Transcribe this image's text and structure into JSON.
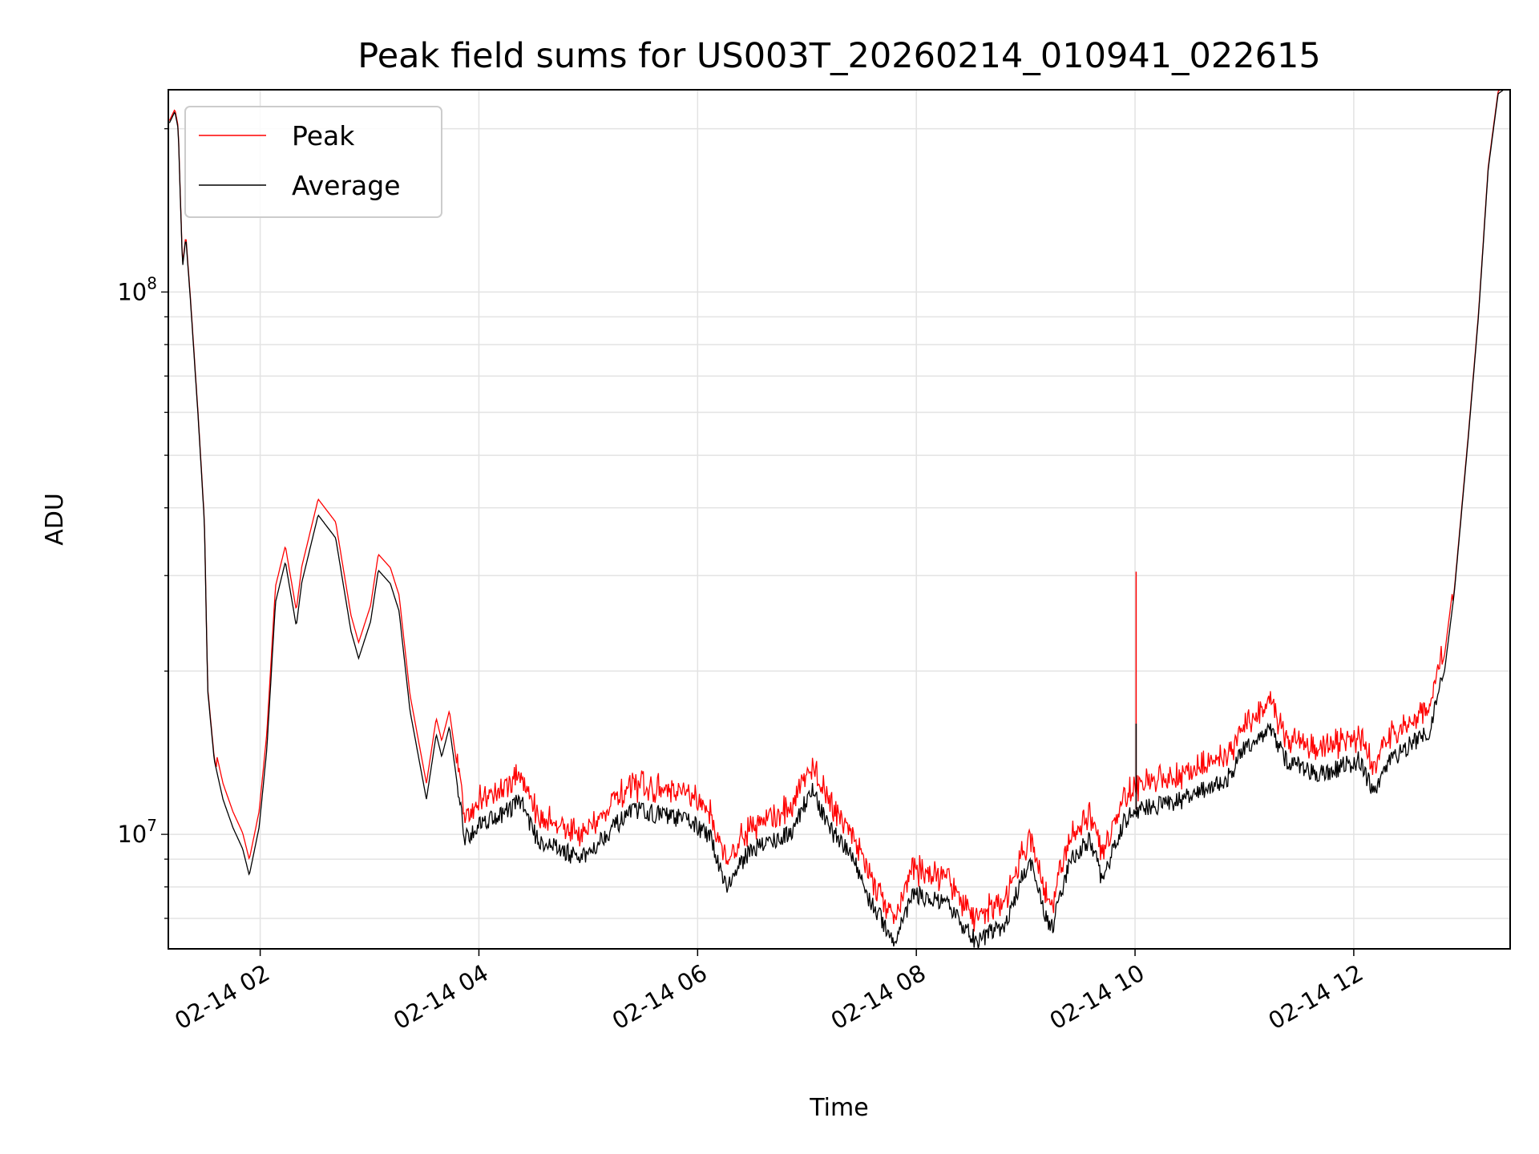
{
  "chart_data": {
    "type": "line",
    "title": "Peak field sums for US003T_20260214_010941_022615",
    "xlabel": "Time",
    "ylabel": "ADU",
    "yscale": "log",
    "ylim": [
      6150000,
      236000000
    ],
    "xlim_hours": [
      1.16,
      13.43
    ],
    "grid": true,
    "legend_placement": "top-left",
    "x_ticks": [
      {
        "hour": 2,
        "label": "02-14 02"
      },
      {
        "hour": 4,
        "label": "02-14 04"
      },
      {
        "hour": 6,
        "label": "02-14 06"
      },
      {
        "hour": 8,
        "label": "02-14 08"
      },
      {
        "hour": 10,
        "label": "02-14 10"
      },
      {
        "hour": 12,
        "label": "02-14 12"
      }
    ],
    "y_ticks": [
      {
        "value": 10000000,
        "base": "10",
        "exp": "7"
      },
      {
        "value": 100000000,
        "base": "10",
        "exp": "8"
      }
    ],
    "series": [
      {
        "name": "Peak",
        "color": "#ff0000",
        "ratio_to_average": 1.07,
        "spike": {
          "hour": 10.01,
          "value": 30500000
        }
      },
      {
        "name": "Average",
        "color": "#000000",
        "spike": {
          "hour": 10.01,
          "value": 16000000
        }
      }
    ],
    "average_keypoints_hour_millions": [
      [
        1.17,
        205
      ],
      [
        1.22,
        215
      ],
      [
        1.25,
        200
      ],
      [
        1.29,
        111
      ],
      [
        1.32,
        126
      ],
      [
        1.36,
        98
      ],
      [
        1.43,
        60
      ],
      [
        1.49,
        37.6
      ],
      [
        1.52,
        18.4
      ],
      [
        1.58,
        13.7
      ],
      [
        1.66,
        11.6
      ],
      [
        1.75,
        10.3
      ],
      [
        1.84,
        9.4
      ],
      [
        1.9,
        8.4
      ],
      [
        1.99,
        10.3
      ],
      [
        2.06,
        14.3
      ],
      [
        2.14,
        26.8
      ],
      [
        2.23,
        31.8
      ],
      [
        2.33,
        24.2
      ],
      [
        2.38,
        29.1
      ],
      [
        2.53,
        38.8
      ],
      [
        2.69,
        35.2
      ],
      [
        2.83,
        23.7
      ],
      [
        2.9,
        21.1
      ],
      [
        3.01,
        24.7
      ],
      [
        3.08,
        30.7
      ],
      [
        3.19,
        29
      ],
      [
        3.27,
        25.8
      ],
      [
        3.37,
        16.9
      ],
      [
        3.52,
        11.6
      ],
      [
        3.61,
        15.3
      ],
      [
        3.66,
        13.9
      ],
      [
        3.73,
        15.8
      ],
      [
        3.87,
        9.84
      ],
      [
        4.04,
        10.6
      ],
      [
        4.22,
        10.9
      ],
      [
        4.38,
        11.6
      ],
      [
        4.53,
        9.8
      ],
      [
        4.94,
        9.0
      ],
      [
        5.22,
        10.3
      ],
      [
        5.44,
        11.1
      ],
      [
        5.94,
        10.6
      ],
      [
        6.12,
        9.8
      ],
      [
        6.27,
        8.0
      ],
      [
        6.48,
        9.4
      ],
      [
        6.84,
        10.0
      ],
      [
        7.04,
        12.1
      ],
      [
        7.2,
        10.3
      ],
      [
        7.43,
        9.0
      ],
      [
        7.56,
        7.66
      ],
      [
        7.8,
        6.34
      ],
      [
        7.97,
        7.8
      ],
      [
        8.28,
        7.4
      ],
      [
        8.55,
        6.34
      ],
      [
        8.82,
        6.85
      ],
      [
        9.03,
        9.0
      ],
      [
        9.23,
        6.6
      ],
      [
        9.41,
        9.0
      ],
      [
        9.59,
        9.8
      ],
      [
        9.7,
        8.2
      ],
      [
        9.9,
        10.6
      ],
      [
        10.01,
        11.1
      ],
      [
        10.44,
        11.6
      ],
      [
        10.84,
        12.6
      ],
      [
        11.02,
        14.6
      ],
      [
        11.24,
        15.6
      ],
      [
        11.38,
        13.7
      ],
      [
        11.69,
        12.9
      ],
      [
        12.05,
        13.7
      ],
      [
        12.19,
        11.8
      ],
      [
        12.33,
        13.7
      ],
      [
        12.69,
        15.6
      ],
      [
        12.83,
        20
      ],
      [
        12.92,
        28
      ],
      [
        13.05,
        54.7
      ],
      [
        13.14,
        90
      ],
      [
        13.23,
        169
      ],
      [
        13.32,
        232
      ],
      [
        13.42,
        240
      ]
    ]
  }
}
